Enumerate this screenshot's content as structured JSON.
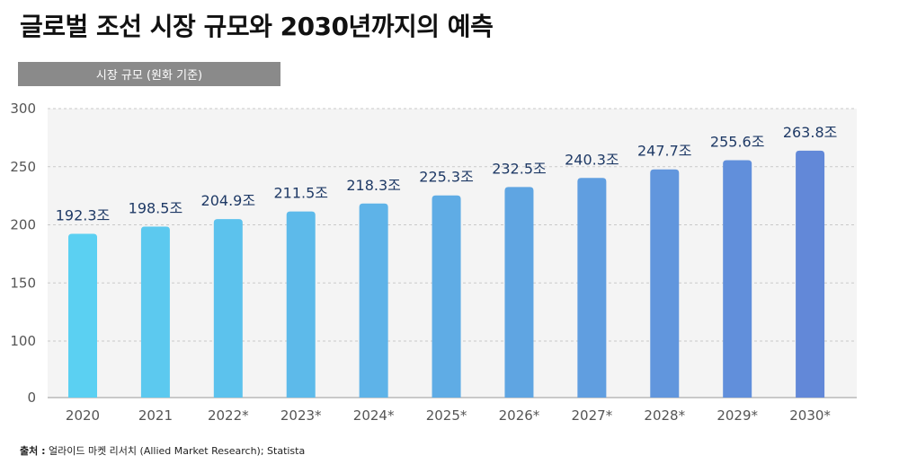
{
  "title": "글로벌 조선 시장 규모와 2030년까지의 예측",
  "legend_label": "시장 규모 (원화 기준)",
  "source": {
    "label": "출처 :",
    "text": "얼라이드 마켓 리서치 (Allied Market Research); Statista"
  },
  "colors": {
    "bar_start": "#5bd0f2",
    "bar_end": "#6288d8",
    "label": "#1f3a66",
    "grid": "#c9c9c9",
    "plot_bg": "#f4f4f4",
    "axis_text": "#555555"
  },
  "chart_data": {
    "type": "bar",
    "title": "글로벌 조선 시장 규모와 2030년까지의 예측",
    "ylabel": "",
    "xlabel": "",
    "ylim": [
      0,
      300
    ],
    "yticks": [
      0,
      100,
      150,
      200,
      250,
      300
    ],
    "categories": [
      "2020",
      "2021",
      "2022*",
      "2023*",
      "2024*",
      "2025*",
      "2026*",
      "2027*",
      "2028*",
      "2029*",
      "2030*"
    ],
    "values": [
      192.3,
      198.5,
      204.9,
      211.5,
      218.3,
      225.3,
      232.5,
      240.3,
      247.7,
      255.6,
      263.8
    ],
    "value_labels": [
      "192.3조",
      "198.5조",
      "204.9조",
      "211.5조",
      "218.3조",
      "225.3조",
      "232.5조",
      "240.3조",
      "247.7조",
      "255.6조",
      "263.8조"
    ]
  }
}
